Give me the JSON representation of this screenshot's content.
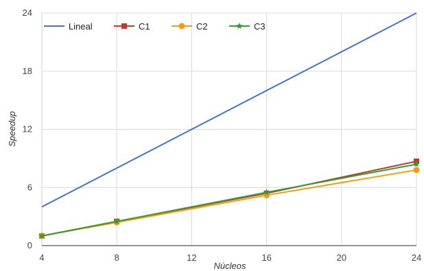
{
  "chart_data": {
    "type": "line",
    "xlabel": "Núcleos",
    "ylabel": "Speedup",
    "xlim": [
      4,
      24
    ],
    "ylim": [
      0,
      24
    ],
    "xticks": [
      "4",
      "8",
      "12",
      "16",
      "20",
      "24"
    ],
    "yticks": [
      "0",
      "6",
      "12",
      "18",
      "24"
    ],
    "grid": true,
    "legend_position": "top-left",
    "series": [
      {
        "name": "Lineal",
        "color": "#4472c4",
        "marker": "none",
        "x": [
          4,
          24
        ],
        "values": [
          4,
          24
        ]
      },
      {
        "name": "C1",
        "color": "#c0392b",
        "marker": "square",
        "x": [
          4,
          8,
          16,
          24
        ],
        "values": [
          1.0,
          2.5,
          5.4,
          8.7
        ]
      },
      {
        "name": "C2",
        "color": "#f39c12",
        "marker": "circle",
        "x": [
          4,
          8,
          16,
          24
        ],
        "values": [
          1.0,
          2.4,
          5.2,
          7.8
        ]
      },
      {
        "name": "C3",
        "color": "#2e9e2e",
        "marker": "star",
        "x": [
          4,
          8,
          16,
          24
        ],
        "values": [
          1.0,
          2.5,
          5.5,
          8.4
        ]
      }
    ]
  }
}
